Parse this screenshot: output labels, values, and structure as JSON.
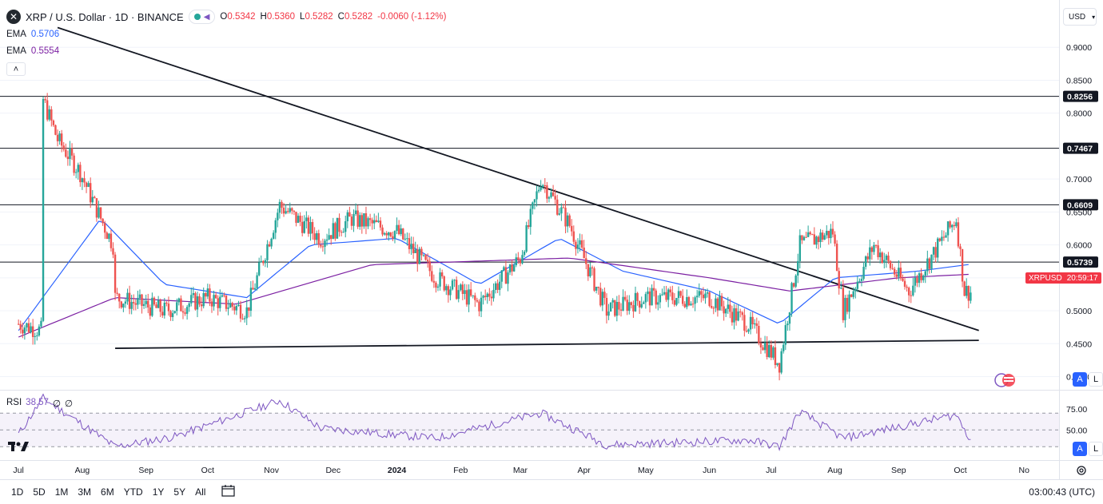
{
  "header": {
    "symbol_icon": "xrp-logo-icon",
    "symbol_icon_glyph": "✕",
    "title": "XRP / U.S. Dollar · 1D · BINANCE",
    "ohlc": {
      "open_label": "O",
      "open": "0.5342",
      "high_label": "H",
      "high": "0.5360",
      "low_label": "L",
      "low": "0.5282",
      "close_label": "C",
      "close": "0.5282",
      "change": "-0.0060 (-1.12%)"
    }
  },
  "indicators": {
    "ema1": {
      "label": "EMA",
      "value": "0.5706",
      "color": "#2962ff"
    },
    "ema2": {
      "label": "EMA",
      "value": "0.5554",
      "color": "#7b1fa2"
    },
    "rsi": {
      "label": "RSI",
      "value": "38.57",
      "param1": "∅",
      "param2": "∅",
      "color": "#7e57c2"
    }
  },
  "price_axis": {
    "currency": "USD",
    "ticks": [
      "0.9000",
      "0.8500",
      "0.8000",
      "0.7000",
      "0.6500",
      "0.6000",
      "0.5500",
      "0.5000",
      "0.4500",
      "0.4000"
    ],
    "levels": [
      "0.8256",
      "0.7467",
      "0.6609",
      "0.5739"
    ],
    "current_label": "XRPUSD",
    "current_countdown": "20:59:17",
    "current_price": 0.5282,
    "range": [
      0.38,
      0.95
    ],
    "auto_label": "A",
    "log_label": "L"
  },
  "rsi_axis": {
    "ticks": [
      "75.00",
      "50.00"
    ],
    "range": [
      15,
      95
    ],
    "auto_label": "A",
    "log_label": "L"
  },
  "time_axis": {
    "labels": [
      "Jul",
      "Aug",
      "Sep",
      "Oct",
      "Nov",
      "Dec",
      "2024",
      "Feb",
      "Mar",
      "Apr",
      "May",
      "Jun",
      "Jul",
      "Aug",
      "Sep",
      "Oct",
      "No"
    ]
  },
  "bottom_bar": {
    "timeframes": [
      "1D",
      "5D",
      "1M",
      "3M",
      "6M",
      "YTD",
      "1Y",
      "5Y",
      "All"
    ],
    "clock": "03:00:43 (UTC)"
  },
  "chart_data": {
    "type": "candlestick",
    "symbol": "XRPUSD",
    "interval": "1D",
    "y_range": [
      0.38,
      0.95
    ],
    "horizontal_levels": [
      0.8256,
      0.7467,
      0.6609,
      0.5739
    ],
    "trendlines": [
      {
        "name": "descending",
        "from": {
          "date": "2023-07-20",
          "price": 0.93
        },
        "to": {
          "date": "2024-10-10",
          "price": 0.47
        }
      },
      {
        "name": "support",
        "from": {
          "date": "2023-08-17",
          "price": 0.443
        },
        "to": {
          "date": "2024-10-10",
          "price": 0.455
        }
      }
    ],
    "price_path": [
      {
        "date": "2023-07-01",
        "price": 0.48
      },
      {
        "date": "2023-07-12",
        "price": 0.47
      },
      {
        "date": "2023-07-13",
        "price": 0.82
      },
      {
        "date": "2023-07-20",
        "price": 0.76
      },
      {
        "date": "2023-07-31",
        "price": 0.71
      },
      {
        "date": "2023-08-10",
        "price": 0.64
      },
      {
        "date": "2023-08-16",
        "price": 0.6
      },
      {
        "date": "2023-08-17",
        "price": 0.52
      },
      {
        "date": "2023-09-10",
        "price": 0.5
      },
      {
        "date": "2023-10-01",
        "price": 0.52
      },
      {
        "date": "2023-10-20",
        "price": 0.5
      },
      {
        "date": "2023-11-05",
        "price": 0.66
      },
      {
        "date": "2023-11-25",
        "price": 0.61
      },
      {
        "date": "2023-12-10",
        "price": 0.64
      },
      {
        "date": "2024-01-01",
        "price": 0.62
      },
      {
        "date": "2024-01-20",
        "price": 0.55
      },
      {
        "date": "2024-02-10",
        "price": 0.51
      },
      {
        "date": "2024-03-01",
        "price": 0.58
      },
      {
        "date": "2024-03-11",
        "price": 0.7
      },
      {
        "date": "2024-03-25",
        "price": 0.63
      },
      {
        "date": "2024-04-12",
        "price": 0.5
      },
      {
        "date": "2024-05-01",
        "price": 0.52
      },
      {
        "date": "2024-06-01",
        "price": 0.52
      },
      {
        "date": "2024-06-20",
        "price": 0.48
      },
      {
        "date": "2024-07-05",
        "price": 0.42
      },
      {
        "date": "2024-07-15",
        "price": 0.6
      },
      {
        "date": "2024-07-31",
        "price": 0.62
      },
      {
        "date": "2024-08-05",
        "price": 0.5
      },
      {
        "date": "2024-08-20",
        "price": 0.6
      },
      {
        "date": "2024-09-06",
        "price": 0.53
      },
      {
        "date": "2024-09-29",
        "price": 0.64
      },
      {
        "date": "2024-10-03",
        "price": 0.53
      },
      {
        "date": "2024-10-06",
        "price": 0.5282
      }
    ],
    "ema_fast": [
      {
        "date": "2023-07-01",
        "price": 0.47
      },
      {
        "date": "2023-08-10",
        "price": 0.64
      },
      {
        "date": "2023-09-10",
        "price": 0.54
      },
      {
        "date": "2023-10-20",
        "price": 0.52
      },
      {
        "date": "2023-11-20",
        "price": 0.6
      },
      {
        "date": "2024-01-01",
        "price": 0.61
      },
      {
        "date": "2024-02-10",
        "price": 0.54
      },
      {
        "date": "2024-03-20",
        "price": 0.61
      },
      {
        "date": "2024-04-20",
        "price": 0.56
      },
      {
        "date": "2024-06-01",
        "price": 0.53
      },
      {
        "date": "2024-07-05",
        "price": 0.48
      },
      {
        "date": "2024-08-01",
        "price": 0.55
      },
      {
        "date": "2024-09-10",
        "price": 0.56
      },
      {
        "date": "2024-10-06",
        "price": 0.5706
      }
    ],
    "ema_slow": [
      {
        "date": "2023-07-01",
        "price": 0.46
      },
      {
        "date": "2023-08-17",
        "price": 0.52
      },
      {
        "date": "2023-10-15",
        "price": 0.51
      },
      {
        "date": "2023-12-20",
        "price": 0.57
      },
      {
        "date": "2024-03-25",
        "price": 0.58
      },
      {
        "date": "2024-06-01",
        "price": 0.55
      },
      {
        "date": "2024-07-10",
        "price": 0.53
      },
      {
        "date": "2024-09-01",
        "price": 0.55
      },
      {
        "date": "2024-10-06",
        "price": 0.5554
      }
    ],
    "rsi": [
      {
        "date": "2023-07-01",
        "price": 45
      },
      {
        "date": "2023-07-13",
        "price": 88
      },
      {
        "date": "2023-08-17",
        "price": 30
      },
      {
        "date": "2023-09-15",
        "price": 42
      },
      {
        "date": "2023-11-05",
        "price": 85
      },
      {
        "date": "2023-11-25",
        "price": 52
      },
      {
        "date": "2024-01-20",
        "price": 40
      },
      {
        "date": "2024-03-11",
        "price": 70
      },
      {
        "date": "2024-04-12",
        "price": 32
      },
      {
        "date": "2024-06-20",
        "price": 38
      },
      {
        "date": "2024-07-05",
        "price": 30
      },
      {
        "date": "2024-07-15",
        "price": 72
      },
      {
        "date": "2024-08-05",
        "price": 40
      },
      {
        "date": "2024-09-29",
        "price": 68
      },
      {
        "date": "2024-10-06",
        "price": 38.57
      }
    ]
  }
}
